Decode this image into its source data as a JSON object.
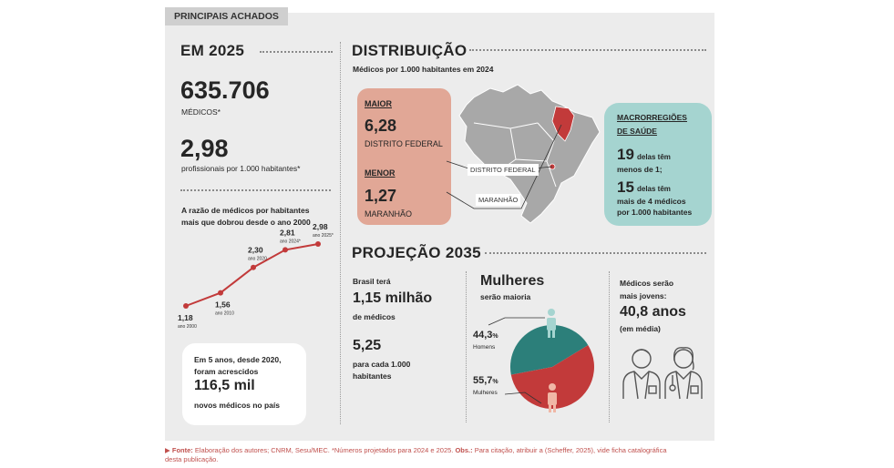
{
  "tag": "PRINCIPAIS ACHADOS",
  "em2025": {
    "title": "EM 2025",
    "medicos_value": "635.706",
    "medicos_label": "MÉDICOS*",
    "ratio_value": "2,98",
    "ratio_label": "profissionais por 1.000 habitantes*",
    "growth_text_1": "A razão de médicos por habitantes",
    "growth_text_2": "mais que dobrou desde o ano 2000",
    "box_line1": "Em 5 anos, desde 2020,",
    "box_line2": "foram acrescidos",
    "box_value": "116,5 mil",
    "box_line3": "novos médicos no país"
  },
  "chart_data": {
    "type": "line",
    "x": [
      "ano 2000",
      "ano 2010",
      "ano 2020",
      "ano 2024*",
      "ano 2025*"
    ],
    "values": [
      1.18,
      1.56,
      2.3,
      2.81,
      2.98
    ],
    "value_labels": [
      "1,18",
      "1,56",
      "2,30",
      "2,81",
      "2,98"
    ],
    "color": "#c23a3a"
  },
  "distribuicao": {
    "title": "DISTRIBUIÇÃO",
    "subtitle": "Médicos por 1.000 habitantes em 2024",
    "maior_label": "MAIOR",
    "maior_value": "6,28",
    "maior_place": "DISTRITO FEDERAL",
    "menor_label": "MENOR",
    "menor_value": "1,27",
    "menor_place": "MARANHÃO",
    "map_df": "DISTRITO FEDERAL",
    "map_ma": "MARANHÃO",
    "macro_title_1": "MACRORREGIÕES",
    "macro_title_2": "DE SAÚDE",
    "macro_n1": "19",
    "macro_t1a": "delas têm",
    "macro_t1b": "menos de 1;",
    "macro_n2": "15",
    "macro_t2a": "delas têm",
    "macro_t2b": "mais de 4 médicos",
    "macro_t2c": "por 1.000  habitantes"
  },
  "projecao": {
    "title": "PROJEÇÃO 2035",
    "brasil_1": "Brasil terá",
    "brasil_value": "1,15 milhão",
    "brasil_2": "de médicos",
    "ratio_value": "5,25",
    "ratio_1": "para cada 1.000",
    "ratio_2": "habitantes",
    "mulheres_title": "Mulheres",
    "mulheres_sub": "serão maioria",
    "homens_pct": "44,3",
    "homens_label": "Homens",
    "mulheres_pct": "55,7",
    "mulheres_label": "Mulheres",
    "pct_sign": "%",
    "jovens_1": "Médicos serão",
    "jovens_2": "mais jovens:",
    "jovens_value": "40,8 anos",
    "jovens_3": "(em média)"
  },
  "pie_data": {
    "type": "pie",
    "labels": [
      "Homens",
      "Mulheres"
    ],
    "values": [
      44.3,
      55.7
    ],
    "colors": [
      "#2c7f7a",
      "#c23a3a"
    ]
  },
  "footer": {
    "marker": "▶",
    "fonte_label": "Fonte:",
    "fonte_text": " Elaboração dos autores; CNRM, Sesu/MEC. *Números projetados para 2024 e 2025. ",
    "obs_label": "Obs.:",
    "obs_text": " Para citação, atribuir a (Scheffer, 2025), vide ficha catalográfica",
    "line2": "desta publicação."
  }
}
